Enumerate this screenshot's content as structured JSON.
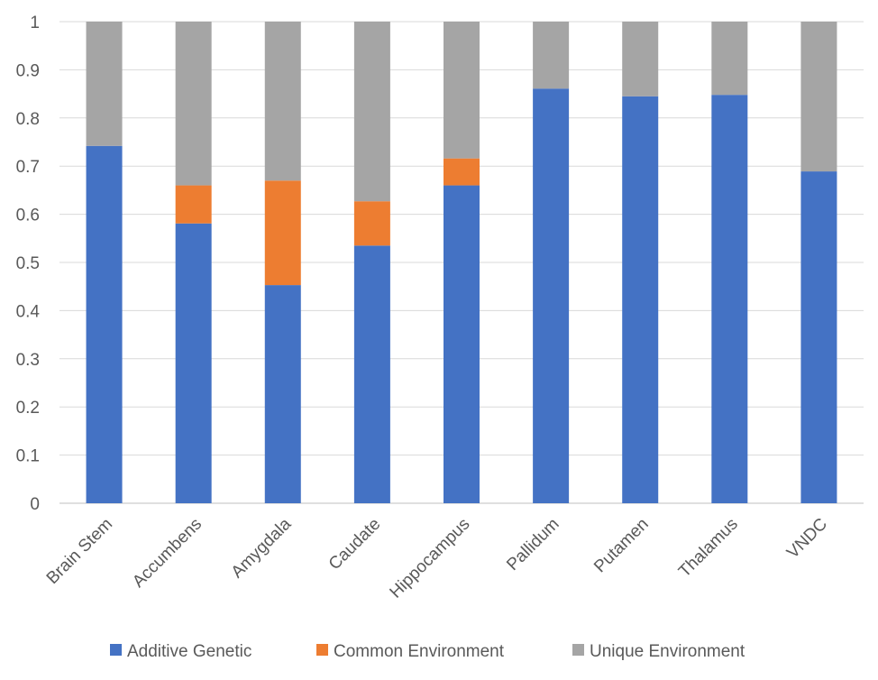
{
  "chart_data": {
    "type": "bar",
    "stacked": true,
    "title": "",
    "xlabel": "",
    "ylabel": "",
    "ylim": [
      0,
      1
    ],
    "yticks": [
      0,
      0.1,
      0.2,
      0.3,
      0.4,
      0.5,
      0.6,
      0.7,
      0.8,
      0.9,
      1
    ],
    "ytick_labels": [
      "0",
      "0.1",
      "0.2",
      "0.3",
      "0.4",
      "0.5",
      "0.6",
      "0.7",
      "0.8",
      "0.9",
      "1"
    ],
    "grid": true,
    "legend_position": "bottom",
    "categories": [
      "Brain Stem",
      "Accumbens",
      "Amygdala",
      "Caudate",
      "Hippocampus",
      "Pallidum",
      "Putamen",
      "Thalamus",
      "VNDC"
    ],
    "series": [
      {
        "name": "Additive Genetic",
        "color": "#4472C4",
        "values": [
          0.742,
          0.581,
          0.453,
          0.535,
          0.66,
          0.861,
          0.845,
          0.848,
          0.689
        ]
      },
      {
        "name": "Common Environment",
        "color": "#ED7D31",
        "values": [
          0.0,
          0.079,
          0.217,
          0.092,
          0.056,
          0.0,
          0.0,
          0.0,
          0.0
        ]
      },
      {
        "name": "Unique Environment",
        "color": "#A5A5A5",
        "values": [
          0.258,
          0.34,
          0.33,
          0.373,
          0.284,
          0.139,
          0.155,
          0.152,
          0.311
        ]
      }
    ]
  }
}
